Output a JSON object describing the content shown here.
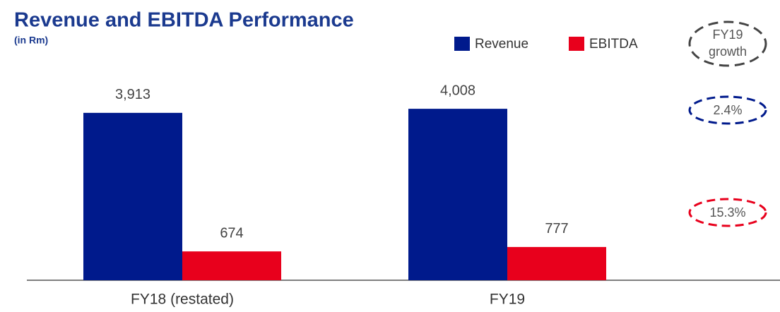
{
  "chart_data": {
    "type": "bar",
    "title": "Revenue and EBITDA Performance",
    "subtitle": "(in Rm)",
    "categories": [
      "FY18 (restated)",
      "FY19"
    ],
    "series": [
      {
        "name": "Revenue",
        "color": "#001a8c",
        "values": [
          3913,
          4008
        ],
        "value_labels": [
          "3,913",
          "4,008"
        ]
      },
      {
        "name": "EBITDA",
        "color": "#e8001c",
        "values": [
          674,
          777
        ],
        "value_labels": [
          "674",
          "777"
        ]
      }
    ],
    "ylim": [
      0,
      5000
    ],
    "growth_header": [
      "FY19",
      "growth"
    ],
    "growth_labels": [
      "2.4%",
      "15.3%"
    ]
  }
}
